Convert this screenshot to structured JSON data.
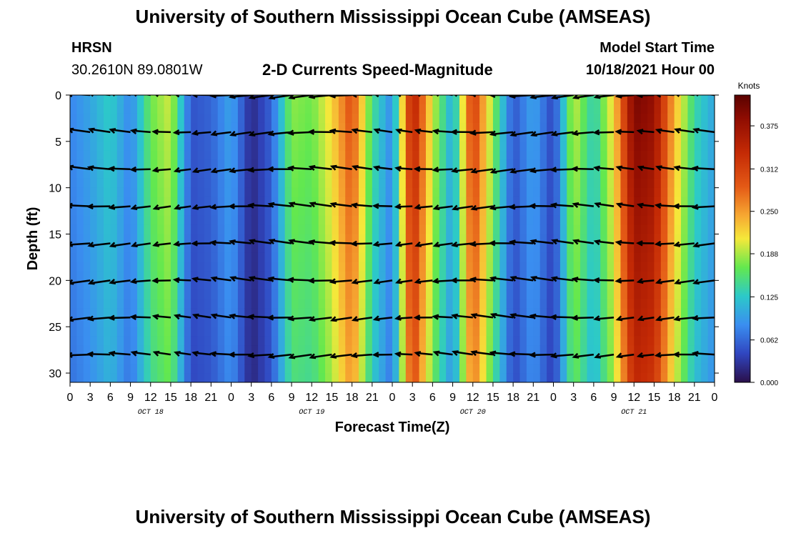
{
  "page": {
    "title": "University of Southern Mississippi Ocean Cube (AMSEAS)",
    "footer_title": "University of Southern Mississippi Ocean Cube (AMSEAS)"
  },
  "header": {
    "station": "HRSN",
    "coords": "30.2610N  89.0801W",
    "subtitle": "2-D Currents Speed-Magnitude",
    "model_label": "Model Start Time",
    "model_time": "10/18/2021 Hour 00"
  },
  "chart_data": {
    "type": "heatmap",
    "title": "2-D Currents Speed-Magnitude",
    "xlabel": "Forecast Time(Z)",
    "ylabel": "Depth (ft)",
    "x_tick_labels": [
      "0",
      "3",
      "6",
      "9",
      "12",
      "15",
      "18",
      "21",
      "0",
      "3",
      "6",
      "9",
      "12",
      "15",
      "18",
      "21",
      "0",
      "3",
      "6",
      "9",
      "12",
      "15",
      "18",
      "21",
      "0",
      "3",
      "6",
      "9",
      "12",
      "15",
      "18",
      "21",
      "0"
    ],
    "x_range_hours": [
      0,
      96
    ],
    "day_labels": [
      {
        "label": "OCT 18",
        "hour": 12
      },
      {
        "label": "OCT 19",
        "hour": 36
      },
      {
        "label": "OCT 20",
        "hour": 60
      },
      {
        "label": "OCT 21",
        "hour": 84
      }
    ],
    "y_ticks": [
      0,
      5,
      10,
      15,
      20,
      25,
      30
    ],
    "y_range": [
      0,
      31
    ],
    "y_inverted": true,
    "colorbar": {
      "label": "Knots",
      "ticks": [
        "0.000",
        "0.062",
        "0.125",
        "0.188",
        "0.250",
        "0.312",
        "0.375"
      ],
      "range": [
        0,
        0.42
      ]
    },
    "approx_surface_speed_knots": {
      "hours": [
        0,
        3,
        6,
        9,
        12,
        15,
        18,
        21,
        24,
        27,
        30,
        33,
        36,
        39,
        42,
        45,
        48,
        51,
        54,
        57,
        60,
        63,
        66,
        69,
        72,
        75,
        78,
        81,
        84,
        87,
        90,
        93,
        96
      ],
      "speed": [
        0.08,
        0.1,
        0.13,
        0.08,
        0.17,
        0.2,
        0.05,
        0.06,
        0.1,
        0.02,
        0.06,
        0.18,
        0.17,
        0.22,
        0.3,
        0.15,
        0.08,
        0.36,
        0.2,
        0.1,
        0.32,
        0.18,
        0.05,
        0.1,
        0.04,
        0.2,
        0.13,
        0.22,
        0.4,
        0.38,
        0.24,
        0.14,
        0.1
      ]
    },
    "vector_depths_ft": [
      0,
      4,
      8,
      12,
      16,
      20,
      24,
      28
    ]
  }
}
